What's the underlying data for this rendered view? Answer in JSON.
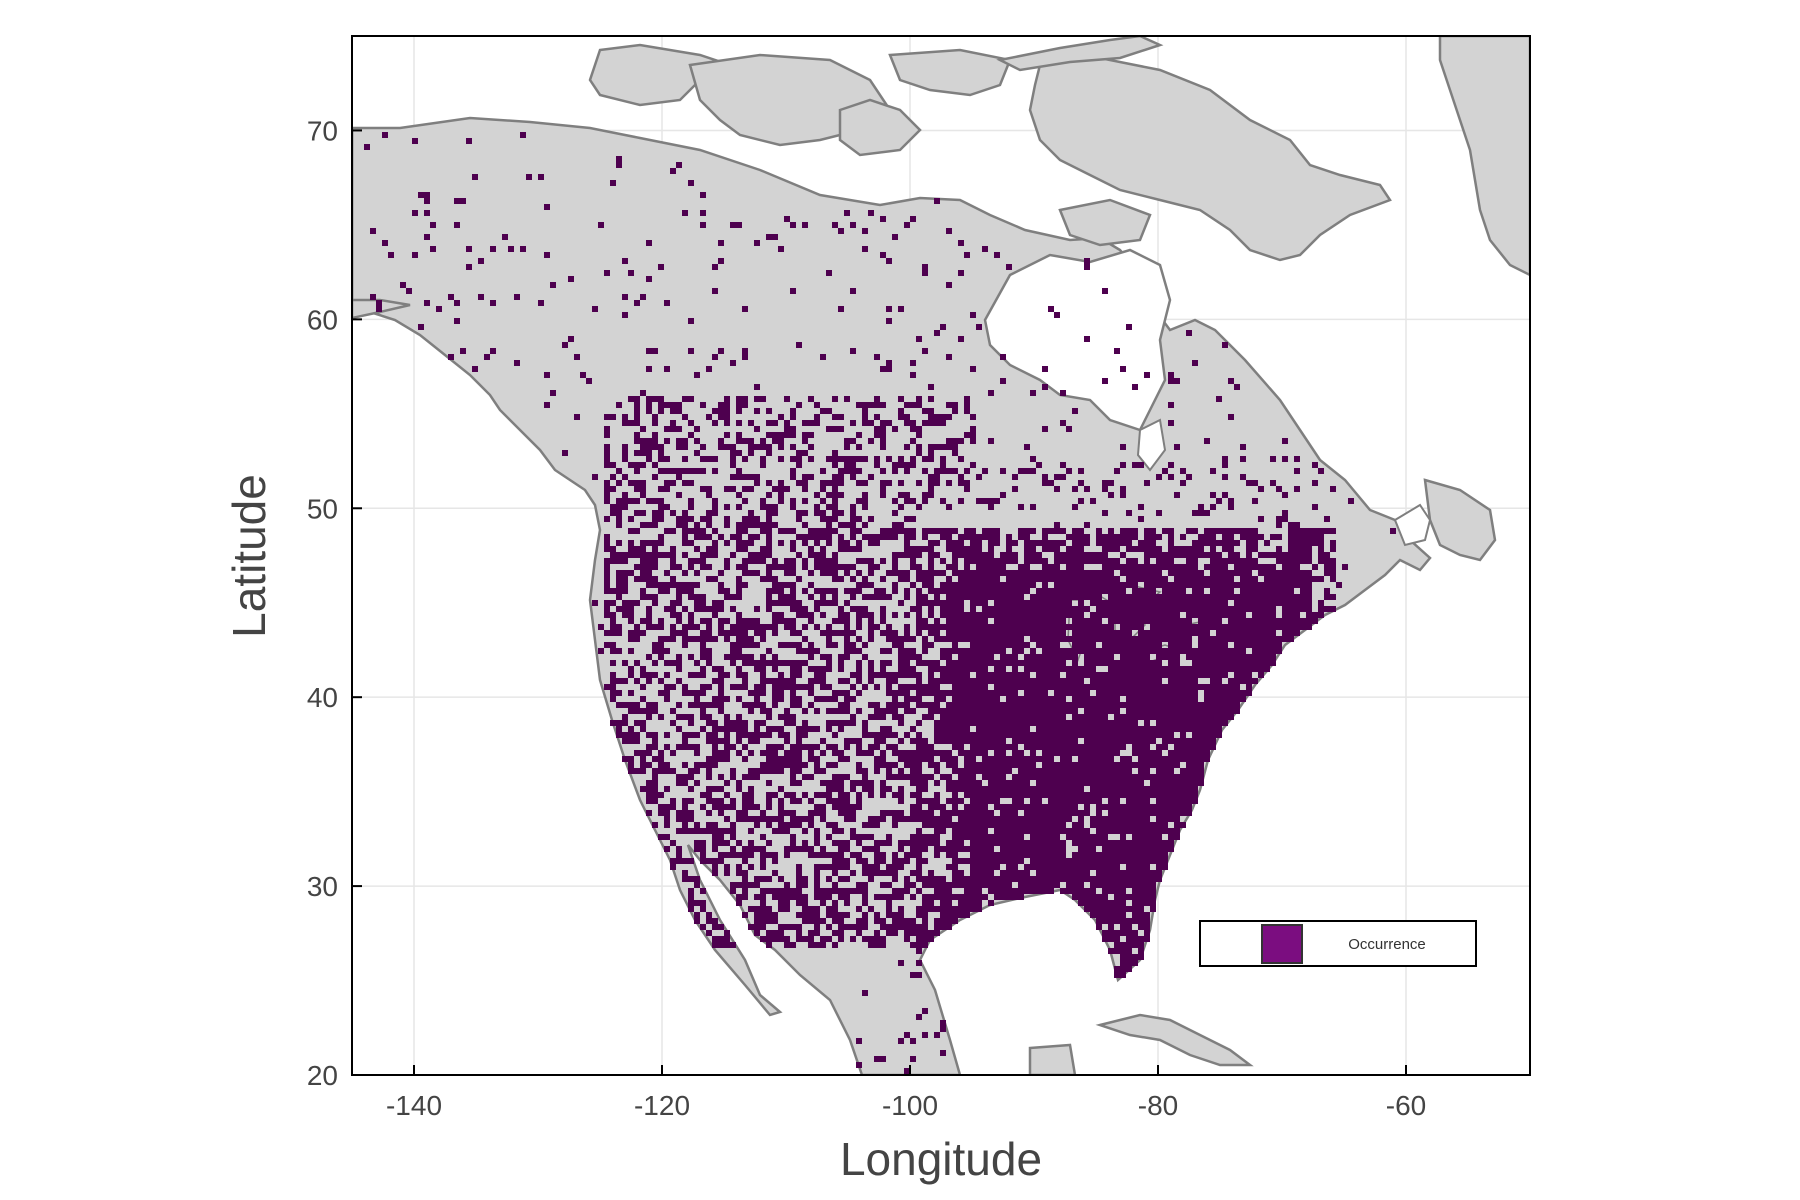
{
  "map": {
    "title": "",
    "x_axis": {
      "label": "Longitude",
      "range": [
        -145,
        -50
      ],
      "ticks": [
        -140,
        -120,
        -100,
        -80,
        -60
      ],
      "tick_labels": [
        "-140",
        "-120",
        "-100",
        "-80",
        "-60"
      ]
    },
    "y_axis": {
      "label": "Latitude",
      "range": [
        20,
        75
      ],
      "ticks": [
        20,
        30,
        40,
        50,
        60,
        70
      ],
      "tick_labels": [
        "20",
        "30",
        "40",
        "50",
        "60",
        "70"
      ]
    },
    "grid": true,
    "legend": {
      "position": "bottom-right",
      "entries": [
        {
          "label": "Occurrence",
          "color": "#7b0d80"
        }
      ]
    },
    "colors": {
      "land": "#d3d3d3",
      "coast": "#7f7f7f",
      "water": "#ffffff",
      "occurrence": "#4e004f",
      "grid": "#e6e6e6"
    }
  }
}
